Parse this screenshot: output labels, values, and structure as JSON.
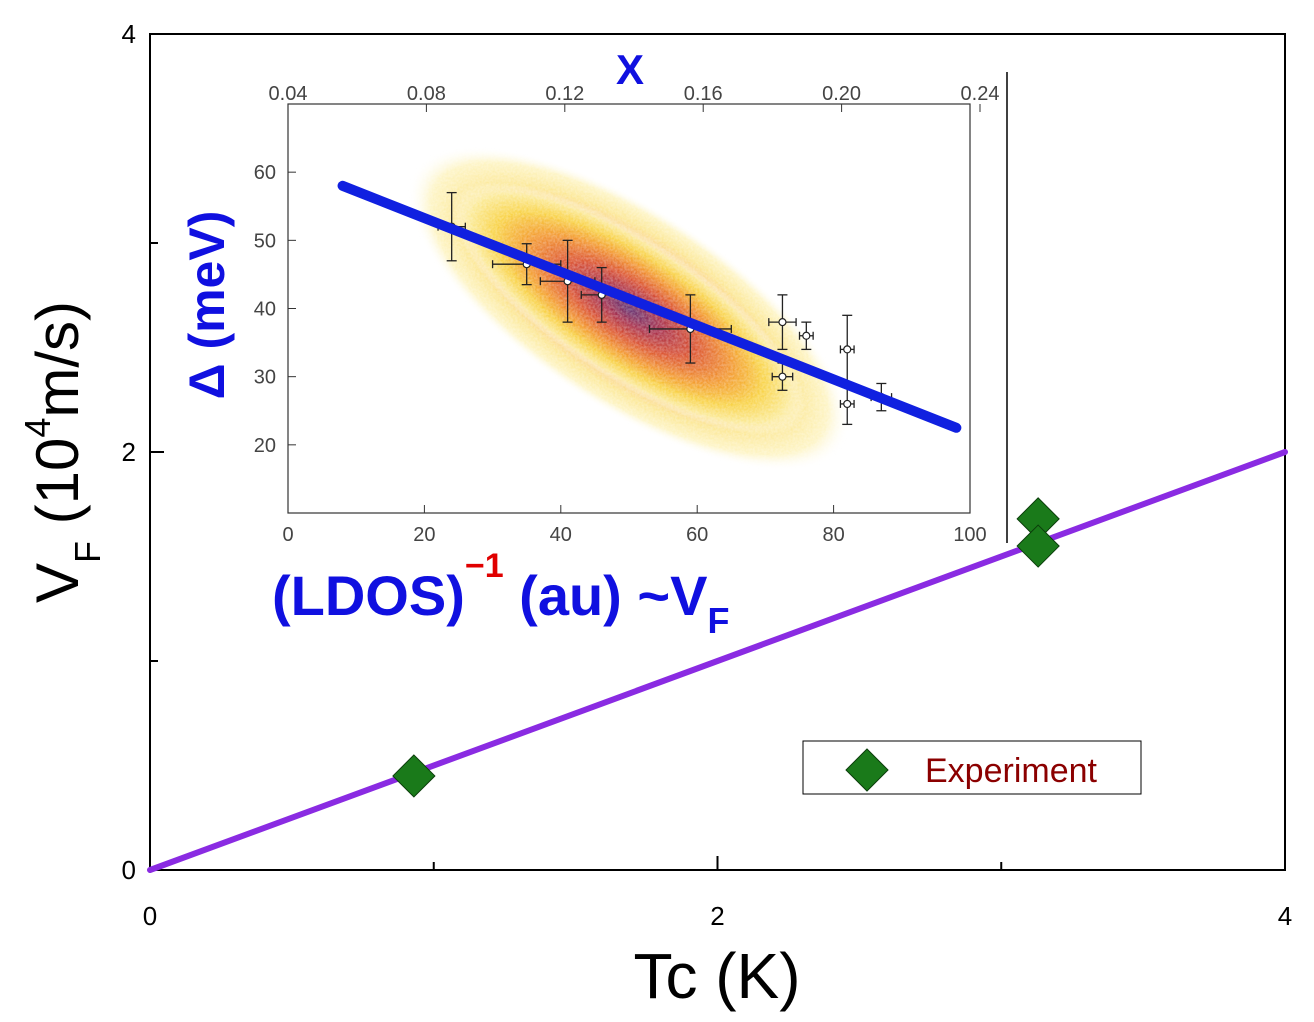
{
  "colors": {
    "fit_line": "#8a2be2",
    "marker_fill": "#1a7a1a",
    "legend_text": "#8b0000",
    "inset_text": "#1010e0",
    "inset_fit": "#1020e0",
    "superscript_red": "#e00000"
  },
  "chart_data": [
    {
      "type": "scatter",
      "title": "",
      "xlabel": "Tc (K)",
      "ylabel_parts": {
        "main": "V",
        "sub": "F",
        "open": " (10",
        "sup": "4",
        "close": "m/s)"
      },
      "xlim": [
        0,
        4
      ],
      "ylim": [
        0,
        4
      ],
      "xticks": [
        0,
        2,
        4
      ],
      "yticks": [
        0,
        2,
        4
      ],
      "xtick_labels": [
        "0",
        "2",
        "4"
      ],
      "ytick_labels": [
        "0",
        "2",
        "4"
      ],
      "legend": {
        "position": "bottom-right",
        "label": "Experiment"
      },
      "series": [
        {
          "name": "Experiment",
          "marker": "diamond",
          "x": [
            0.93,
            3.13,
            3.13
          ],
          "y": [
            0.45,
            1.68,
            1.55
          ]
        }
      ],
      "fit_line": {
        "x": [
          0,
          4
        ],
        "y": [
          0,
          2.0
        ]
      }
    },
    {
      "type": "heatmap",
      "title": "",
      "x_top_label": "X",
      "xlabel_parts": {
        "open": "(LDOS)",
        "sup": "−1",
        "mid": " (au) ~V",
        "sub": "F"
      },
      "ylabel": "Δ (meV)",
      "xlim": [
        0,
        100
      ],
      "ylim": [
        10,
        70
      ],
      "xticks": [
        0,
        20,
        40,
        60,
        80,
        100
      ],
      "xtick_labels": [
        "0",
        "20",
        "40",
        "60",
        "80",
        "100"
      ],
      "yticks": [
        20,
        30,
        40,
        50,
        60
      ],
      "ytick_labels": [
        "20",
        "30",
        "40",
        "50",
        "60"
      ],
      "top_xlim": [
        0.04,
        0.24
      ],
      "top_xticks": [
        0.04,
        0.08,
        0.12,
        0.16,
        0.2,
        0.24
      ],
      "top_xtick_labels": [
        "0.04",
        "0.08",
        "0.12",
        "0.16",
        "0.20",
        "0.24"
      ],
      "fit_line": {
        "x": [
          8,
          98
        ],
        "y": [
          58,
          22.5
        ]
      },
      "data_points": [
        {
          "x": 24,
          "y": 52,
          "xerr": 2,
          "yerr": 5
        },
        {
          "x": 35,
          "y": 46.5,
          "xerr": 5,
          "yerr": 3
        },
        {
          "x": 41,
          "y": 44,
          "xerr": 4,
          "yerr": 6
        },
        {
          "x": 46,
          "y": 42,
          "xerr": 3,
          "yerr": 4
        },
        {
          "x": 59,
          "y": 37,
          "xerr": 6,
          "yerr": 5
        },
        {
          "x": 72.5,
          "y": 38,
          "xerr": 2,
          "yerr": 4
        },
        {
          "x": 72.5,
          "y": 30,
          "xerr": 1.5,
          "yerr": 2
        },
        {
          "x": 76,
          "y": 36,
          "xerr": 1,
          "yerr": 2
        },
        {
          "x": 82,
          "y": 34,
          "xerr": 1,
          "yerr": 5
        },
        {
          "x": 82,
          "y": 26,
          "xerr": 1,
          "yerr": 3
        },
        {
          "x": 87,
          "y": 27,
          "xerr": 1.5,
          "yerr": 2
        }
      ],
      "density": {
        "center_x": 50,
        "center_y": 40,
        "trend_slope": -0.4,
        "orientation_deg": -33
      }
    }
  ]
}
